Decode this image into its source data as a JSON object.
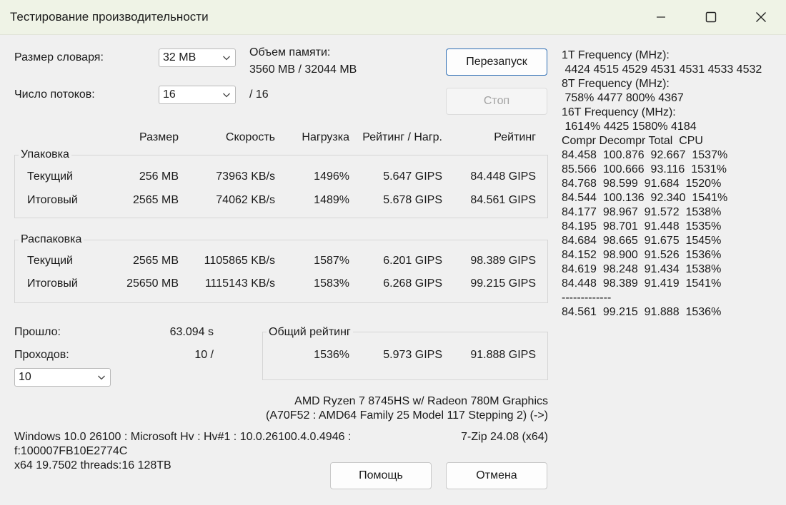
{
  "window": {
    "title": "Тестирование производительности"
  },
  "dict": {
    "label": "Размер словаря:",
    "value": "32 MB"
  },
  "threads": {
    "label": "Число потоков:",
    "value": "16",
    "max": "/ 16"
  },
  "memory": {
    "label": "Объем памяти:",
    "value": "3560 MB / 32044 MB"
  },
  "buttons": {
    "restart": "Перезапуск",
    "stop": "Стоп",
    "help": "Помощь",
    "cancel": "Отмена"
  },
  "columns": {
    "size": "Размер",
    "speed": "Скорость",
    "load": "Нагрузка",
    "rating_load": "Рейтинг / Нагр.",
    "rating": "Рейтинг"
  },
  "compress": {
    "title": "Упаковка",
    "current": {
      "label": "Текущий",
      "size": "256 MB",
      "speed": "73963 KB/s",
      "load": "1496%",
      "rating_load": "5.647 GIPS",
      "rating": "84.448 GIPS"
    },
    "total": {
      "label": "Итоговый",
      "size": "2565 MB",
      "speed": "74062 KB/s",
      "load": "1489%",
      "rating_load": "5.678 GIPS",
      "rating": "84.561 GIPS"
    }
  },
  "decompress": {
    "title": "Распаковка",
    "current": {
      "label": "Текущий",
      "size": "2565 MB",
      "speed": "1105865 KB/s",
      "load": "1587%",
      "rating_load": "6.201 GIPS",
      "rating": "98.389 GIPS"
    },
    "total": {
      "label": "Итоговый",
      "size": "25650 MB",
      "speed": "1115143 KB/s",
      "load": "1583%",
      "rating_load": "6.268 GIPS",
      "rating": "99.215 GIPS"
    }
  },
  "elapsed": {
    "label": "Прошло:",
    "value": "63.094 s"
  },
  "passes": {
    "label": "Проходов:",
    "value": "10 /",
    "select": "10"
  },
  "overall": {
    "title": "Общий рейтинг",
    "load": "1536%",
    "rating_load": "5.973 GIPS",
    "rating": "91.888 GIPS"
  },
  "cpu": {
    "name": "AMD Ryzen 7 8745HS w/ Radeon 780M Graphics",
    "details": "(A70F52 : AMD64 Family 25 Model 117 Stepping 2) (->)"
  },
  "sysinfo": {
    "line1": "Windows 10.0 26100 : Microsoft Hv : Hv#1 : 10.0.26100.4.0.4946 :",
    "line2": "f:100007FB10E2774C",
    "line3": "x64 19.7502 threads:16 128TB",
    "version": "7-Zip 24.08 (x64)"
  },
  "log": {
    "lines": [
      "1T Frequency (MHz):",
      " 4424 4515 4529 4531 4531 4533 4532",
      "8T Frequency (MHz):",
      " 758% 4477 800% 4367",
      "16T Frequency (MHz):",
      " 1614% 4425 1580% 4184",
      "Compr Decompr Total  CPU",
      "84.458  100.876  92.667  1537%",
      "85.566  100.666  93.116  1531%",
      "84.768  98.599  91.684  1520%",
      "84.544  100.136  92.340  1541%",
      "84.177  98.967  91.572  1538%",
      "84.195  98.701  91.448  1535%",
      "84.684  98.665  91.675  1545%",
      "84.152  98.900  91.526  1536%",
      "84.619  98.248  91.434  1538%",
      "84.448  98.389  91.419  1541%",
      "-------------",
      "84.561  99.215  91.888  1536%"
    ]
  }
}
